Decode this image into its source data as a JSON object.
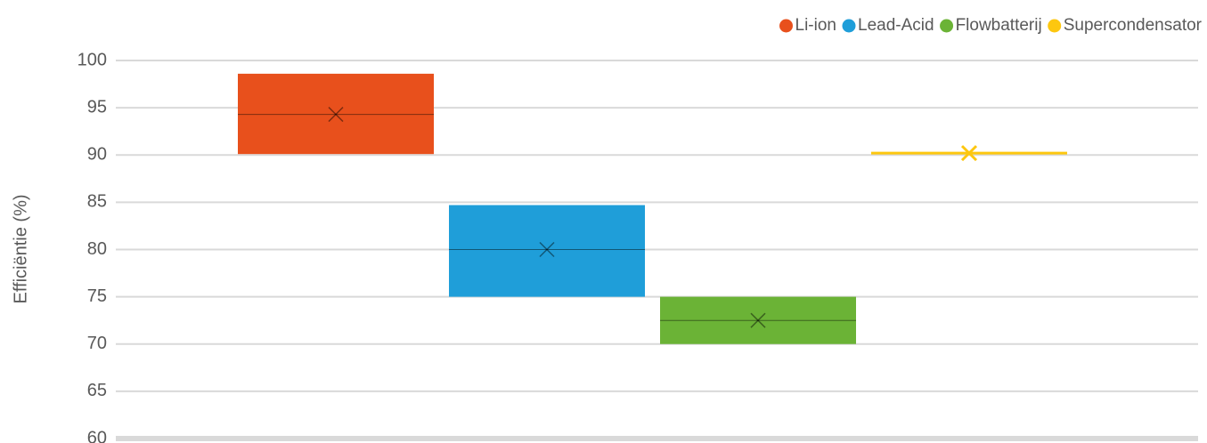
{
  "chart_data": {
    "type": "box",
    "ylabel": "Efficiëntie (%)",
    "ylim": [
      60,
      100
    ],
    "yticks": [
      60,
      65,
      70,
      75,
      80,
      85,
      90,
      95,
      100
    ],
    "grid": true,
    "legend": "top-right",
    "series": [
      {
        "name": "Li-ion",
        "color": "#e8501c",
        "q1": 90.1,
        "median": 94.3,
        "q3": 98.6,
        "mean": 94.3
      },
      {
        "name": "Lead-Acid",
        "color": "#1f9ed9",
        "q1": 75,
        "median": 80,
        "q3": 84.7,
        "mean": 80
      },
      {
        "name": "Flowbatterij",
        "color": "#6bb336",
        "q1": 70,
        "median": 72.5,
        "q3": 75,
        "mean": 72.5
      },
      {
        "name": "Supercondensator",
        "color": "#fdc70f",
        "q1": 90.2,
        "median": 90.2,
        "q3": 90.2,
        "mean": 90.2
      }
    ]
  }
}
